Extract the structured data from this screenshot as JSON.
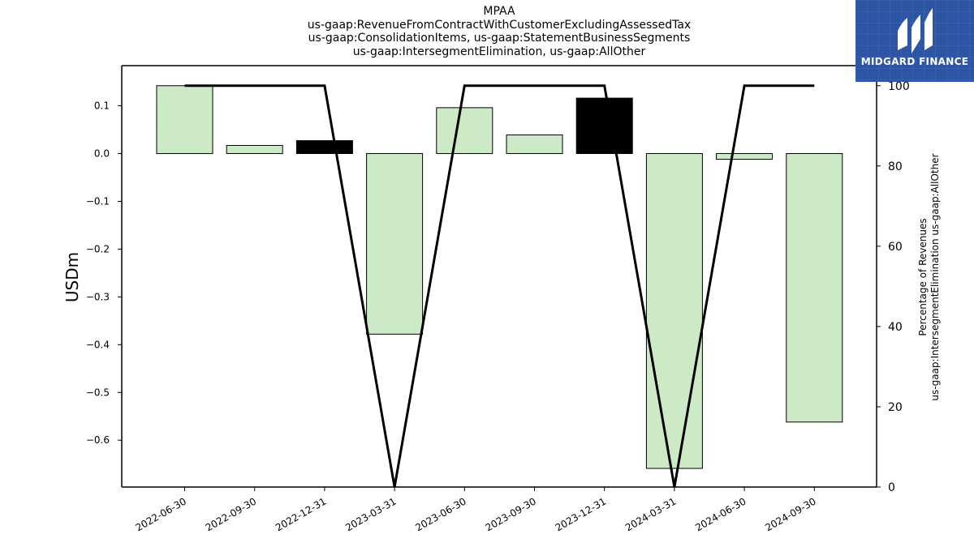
{
  "chart_data": {
    "type": "bar",
    "title_lines": [
      "MPAA",
      "us-gaap:RevenueFromContractWithCustomerExcludingAssessedTax",
      "us-gaap:ConsolidationItems, us-gaap:StatementBusinessSegments",
      "us-gaap:IntersegmentElimination, us-gaap:AllOther"
    ],
    "categories": [
      "2022-06-30",
      "2022-09-30",
      "2022-12-31",
      "2023-03-31",
      "2023-06-30",
      "2023-09-30",
      "2023-12-31",
      "2024-03-31",
      "2024-06-30",
      "2024-09-30"
    ],
    "series": [
      {
        "values": [
          0.142,
          0.017,
          0.027,
          -0.378,
          0.096,
          0.039,
          0.116,
          -0.659,
          -0.012,
          -0.562
        ],
        "bar_colors": [
          "#cdeac6",
          "#cdeac6",
          "#000000",
          "#cdeac6",
          "#cdeac6",
          "#cdeac6",
          "#000000",
          "#cdeac6",
          "#cdeac6",
          "#cdeac6"
        ],
        "axis": "left"
      },
      {
        "type": "line",
        "values": [
          100,
          100,
          100,
          0,
          100,
          100,
          100,
          0,
          100,
          100
        ],
        "color": "#000000",
        "axis": "right"
      }
    ],
    "ylabel": "USDm",
    "y2label_lines": [
      "Percentage of Revenues",
      "us-gaap:IntersegmentElimination us-gaap:AllOther"
    ],
    "ylim": [
      -0.698,
      0.184
    ],
    "y2lim": [
      0,
      105
    ],
    "yticks": [
      0.1,
      0.0,
      -0.1,
      -0.2,
      -0.3,
      -0.4,
      -0.5,
      -0.6
    ],
    "ytick_labels": [
      "0.1",
      "0.0",
      "−0.1",
      "−0.2",
      "−0.3",
      "−0.4",
      "−0.5",
      "−0.6"
    ],
    "y2ticks": [
      100,
      80,
      60,
      40,
      20,
      0
    ],
    "y2tick_labels": [
      "100",
      "80",
      "60",
      "40",
      "20",
      "0"
    ],
    "grid": false
  },
  "logo": {
    "text": "MIDGARD FINANCE",
    "background": "#2d55a5"
  }
}
